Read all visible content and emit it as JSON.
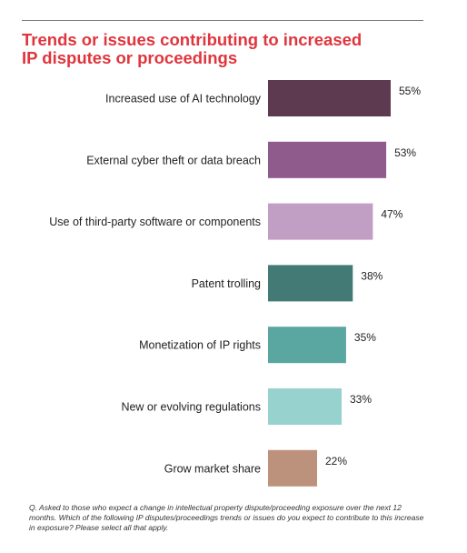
{
  "chart_data": {
    "type": "bar",
    "orientation": "horizontal",
    "title": "Trends or issues contributing to increased IP disputes or proceedings",
    "title_lines": [
      "Trends or issues contributing to increased",
      "IP disputes or proceedings"
    ],
    "categories": [
      "Increased use of AI technology",
      "External cyber theft or data breach",
      "Use of third-party software or components",
      "Patent trolling",
      "Monetization of IP rights",
      "New or evolving regulations",
      "Grow market share"
    ],
    "values": [
      55,
      53,
      47,
      38,
      35,
      33,
      22
    ],
    "value_labels": [
      "55%",
      "53%",
      "47%",
      "38%",
      "35%",
      "33%",
      "22%"
    ],
    "unit": "%",
    "bar_colors": [
      "#5e3a50",
      "#8f5a8c",
      "#c19ec3",
      "#437a75",
      "#5aa7a2",
      "#97d2cf",
      "#bd927c"
    ],
    "xlim": [
      0,
      55
    ],
    "grid": false,
    "legend": "none",
    "footnote": "Q. Asked to those who expect a change in intellectual property dispute/proceeding exposure over the next 12 months. Which of the following IP disputes/proceedings trends or issues do you expect to contribute to this increase in exposure? Please select all that apply."
  },
  "colors": {
    "title": "#e0353d",
    "rule": "#7a7a7a",
    "text": "#222222"
  }
}
